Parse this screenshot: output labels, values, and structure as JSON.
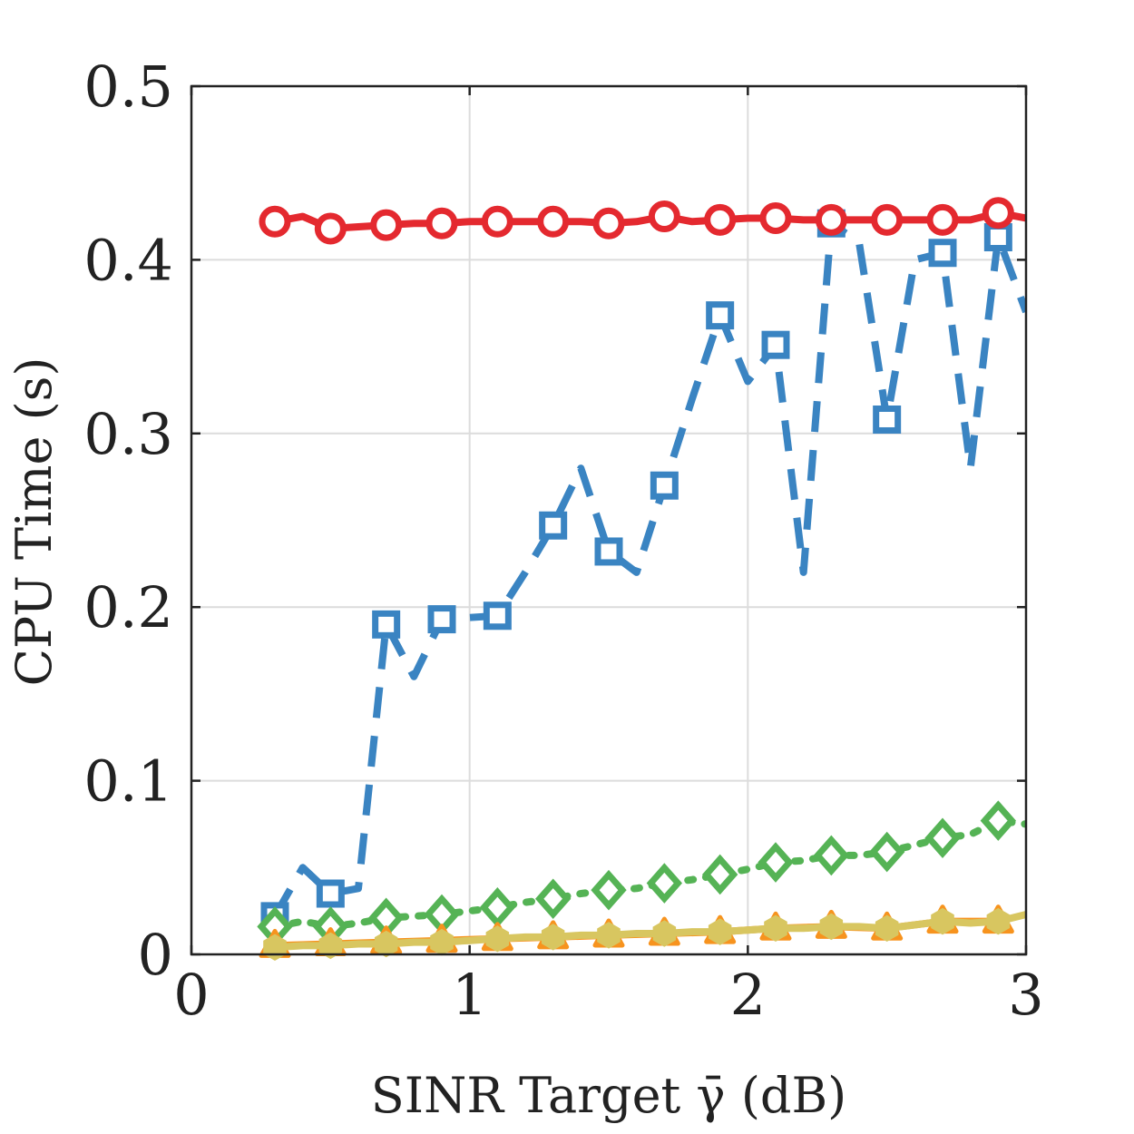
{
  "chart_data": {
    "type": "line",
    "title": "",
    "xlabel": "SINR Target γ̄ (dB)",
    "ylabel": "CPU Time (s)",
    "xlim": [
      0,
      3
    ],
    "ylim": [
      0,
      0.5
    ],
    "grid": true,
    "x_ticks": [
      0,
      1,
      2,
      3
    ],
    "y_ticks": [
      0,
      0.1,
      0.2,
      0.3,
      0.4,
      0.5
    ],
    "x_tick_labels": [
      "0",
      "1",
      "2",
      "3"
    ],
    "y_tick_labels": [
      "0",
      "0.1",
      "0.2",
      "0.3",
      "0.4",
      "0.5"
    ],
    "series": [
      {
        "name": "red-circle-series",
        "color": "#e4292f",
        "line_style": "solid",
        "marker": "circle",
        "x": [
          0.3,
          0.4,
          0.5,
          0.6,
          0.7,
          0.8,
          0.9,
          1.0,
          1.1,
          1.2,
          1.3,
          1.4,
          1.5,
          1.6,
          1.7,
          1.8,
          1.9,
          2.0,
          2.1,
          2.2,
          2.3,
          2.4,
          2.5,
          2.6,
          2.7,
          2.8,
          2.9,
          3.0
        ],
        "y": [
          0.422,
          0.425,
          0.418,
          0.419,
          0.42,
          0.421,
          0.421,
          0.422,
          0.422,
          0.422,
          0.422,
          0.422,
          0.421,
          0.422,
          0.425,
          0.422,
          0.423,
          0.424,
          0.424,
          0.423,
          0.423,
          0.423,
          0.423,
          0.423,
          0.423,
          0.423,
          0.427,
          0.424
        ],
        "marker_x": [
          0.3,
          0.5,
          0.7,
          0.9,
          1.1,
          1.3,
          1.5,
          1.7,
          1.9,
          2.1,
          2.3,
          2.5,
          2.7,
          2.9
        ]
      },
      {
        "name": "blue-square-series",
        "color": "#3a84c2",
        "line_style": "dashed",
        "marker": "square",
        "x": [
          0.3,
          0.4,
          0.5,
          0.6,
          0.7,
          0.8,
          0.9,
          1.0,
          1.1,
          1.2,
          1.3,
          1.4,
          1.5,
          1.6,
          1.7,
          1.8,
          1.9,
          2.0,
          2.1,
          2.2,
          2.3,
          2.4,
          2.5,
          2.6,
          2.7,
          2.8,
          2.9,
          3.0
        ],
        "y": [
          0.022,
          0.05,
          0.035,
          0.038,
          0.19,
          0.16,
          0.193,
          0.194,
          0.195,
          0.22,
          0.247,
          0.28,
          0.232,
          0.22,
          0.27,
          0.32,
          0.368,
          0.33,
          0.351,
          0.22,
          0.421,
          0.41,
          0.308,
          0.4,
          0.404,
          0.28,
          0.413,
          0.37
        ],
        "marker_x": [
          0.3,
          0.5,
          0.7,
          0.9,
          1.1,
          1.3,
          1.5,
          1.7,
          1.9,
          2.1,
          2.3,
          2.5,
          2.7,
          2.9
        ]
      },
      {
        "name": "green-diamond-series",
        "color": "#55b355",
        "line_style": "dotted",
        "marker": "diamond",
        "x": [
          0.3,
          0.4,
          0.5,
          0.6,
          0.7,
          0.8,
          0.9,
          1.0,
          1.1,
          1.2,
          1.3,
          1.4,
          1.5,
          1.6,
          1.7,
          1.8,
          1.9,
          2.0,
          2.1,
          2.2,
          2.3,
          2.4,
          2.5,
          2.6,
          2.7,
          2.8,
          2.9,
          3.0
        ],
        "y": [
          0.016,
          0.019,
          0.016,
          0.018,
          0.021,
          0.022,
          0.023,
          0.025,
          0.027,
          0.03,
          0.032,
          0.035,
          0.037,
          0.038,
          0.041,
          0.043,
          0.046,
          0.049,
          0.053,
          0.054,
          0.057,
          0.057,
          0.059,
          0.063,
          0.067,
          0.069,
          0.077,
          0.075
        ],
        "marker_x": [
          0.3,
          0.5,
          0.7,
          0.9,
          1.1,
          1.3,
          1.5,
          1.7,
          1.9,
          2.1,
          2.3,
          2.5,
          2.7,
          2.9
        ]
      },
      {
        "name": "orange-triangle-series",
        "color": "#f7931e",
        "line_style": "solid",
        "marker": "triangle",
        "x": [
          0.3,
          0.5,
          0.7,
          0.9,
          1.1,
          1.3,
          1.5,
          1.7,
          1.9,
          2.1,
          2.3,
          2.5,
          2.7,
          2.9
        ],
        "y": [
          0.005,
          0.006,
          0.007,
          0.008,
          0.009,
          0.01,
          0.011,
          0.012,
          0.013,
          0.015,
          0.016,
          0.015,
          0.019,
          0.019
        ],
        "marker_x": [
          0.3,
          0.5,
          0.7,
          0.9,
          1.1,
          1.3,
          1.5,
          1.7,
          1.9,
          2.1,
          2.3,
          2.5,
          2.7,
          2.9
        ]
      },
      {
        "name": "yellow-hexagon-series",
        "color": "#d8c660",
        "line_style": "solid",
        "marker": "hexagon",
        "x": [
          0.3,
          0.4,
          0.5,
          0.6,
          0.7,
          0.8,
          0.9,
          1.0,
          1.1,
          1.2,
          1.3,
          1.4,
          1.5,
          1.6,
          1.7,
          1.8,
          1.9,
          2.0,
          2.1,
          2.2,
          2.3,
          2.4,
          2.5,
          2.6,
          2.7,
          2.8,
          2.9,
          3.0
        ],
        "y": [
          0.004,
          0.005,
          0.005,
          0.006,
          0.006,
          0.007,
          0.007,
          0.008,
          0.009,
          0.01,
          0.01,
          0.011,
          0.011,
          0.012,
          0.012,
          0.013,
          0.013,
          0.014,
          0.015,
          0.015,
          0.016,
          0.016,
          0.015,
          0.017,
          0.019,
          0.018,
          0.019,
          0.023
        ],
        "marker_x": [
          0.3,
          0.5,
          0.7,
          0.9,
          1.1,
          1.3,
          1.5,
          1.7,
          1.9,
          2.1,
          2.3,
          2.5,
          2.7,
          2.9
        ]
      }
    ]
  }
}
